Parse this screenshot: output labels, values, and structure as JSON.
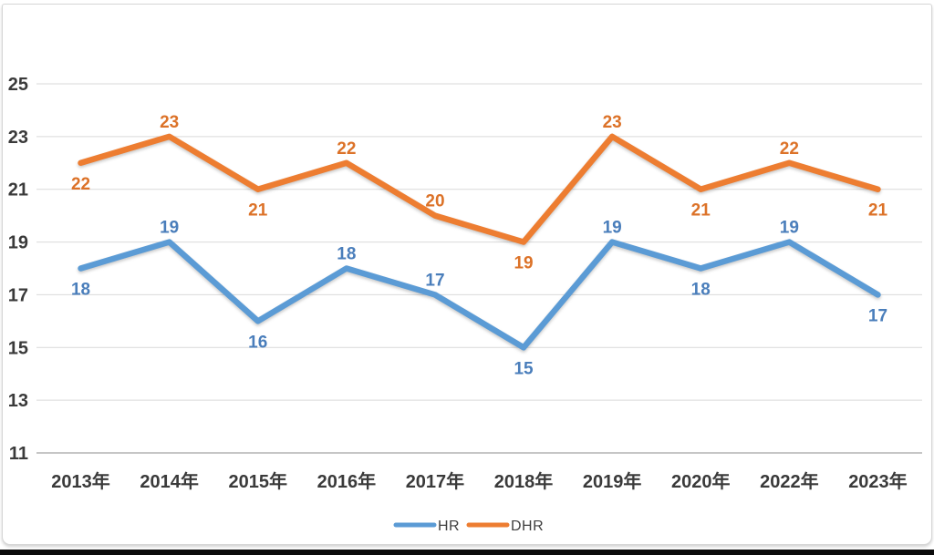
{
  "window": {
    "background": "#ffffff",
    "frame_border_color": "#d6d6d6",
    "bottom_edge_color": "#0b0b0b"
  },
  "chart_data": {
    "type": "line",
    "title": "",
    "categories": [
      "2013年",
      "2014年",
      "2015年",
      "2016年",
      "2017年",
      "2018年",
      "2019年",
      "2020年",
      "2022年",
      "2023年"
    ],
    "series": [
      {
        "name": "HR",
        "values": [
          18,
          19,
          16,
          18,
          17,
          15,
          19,
          18,
          19,
          17
        ],
        "color": "#5B9BD5",
        "label_color": "#4A7EBB",
        "label_sides": [
          "below",
          "above",
          "below",
          "above",
          "above",
          "below",
          "above",
          "below",
          "above",
          "below"
        ]
      },
      {
        "name": "DHR",
        "values": [
          22,
          23,
          21,
          22,
          20,
          19,
          23,
          21,
          22,
          21
        ],
        "color": "#ED7D31",
        "label_color": "#DC7228",
        "label_sides": [
          "below",
          "above",
          "below",
          "above",
          "above",
          "below",
          "above",
          "below",
          "above",
          "below"
        ]
      }
    ],
    "y_ticks": [
      25,
      23,
      21,
      19,
      17,
      15,
      13,
      11
    ],
    "ylim": [
      11,
      25
    ],
    "grid": true,
    "data_labels": true,
    "legend_position": "bottom",
    "grid_color": "#d9d9d9",
    "axis_line_color": "#c6c6c6",
    "tick_label_color": "#3a3a3a",
    "legend_text_color": "#404040"
  }
}
